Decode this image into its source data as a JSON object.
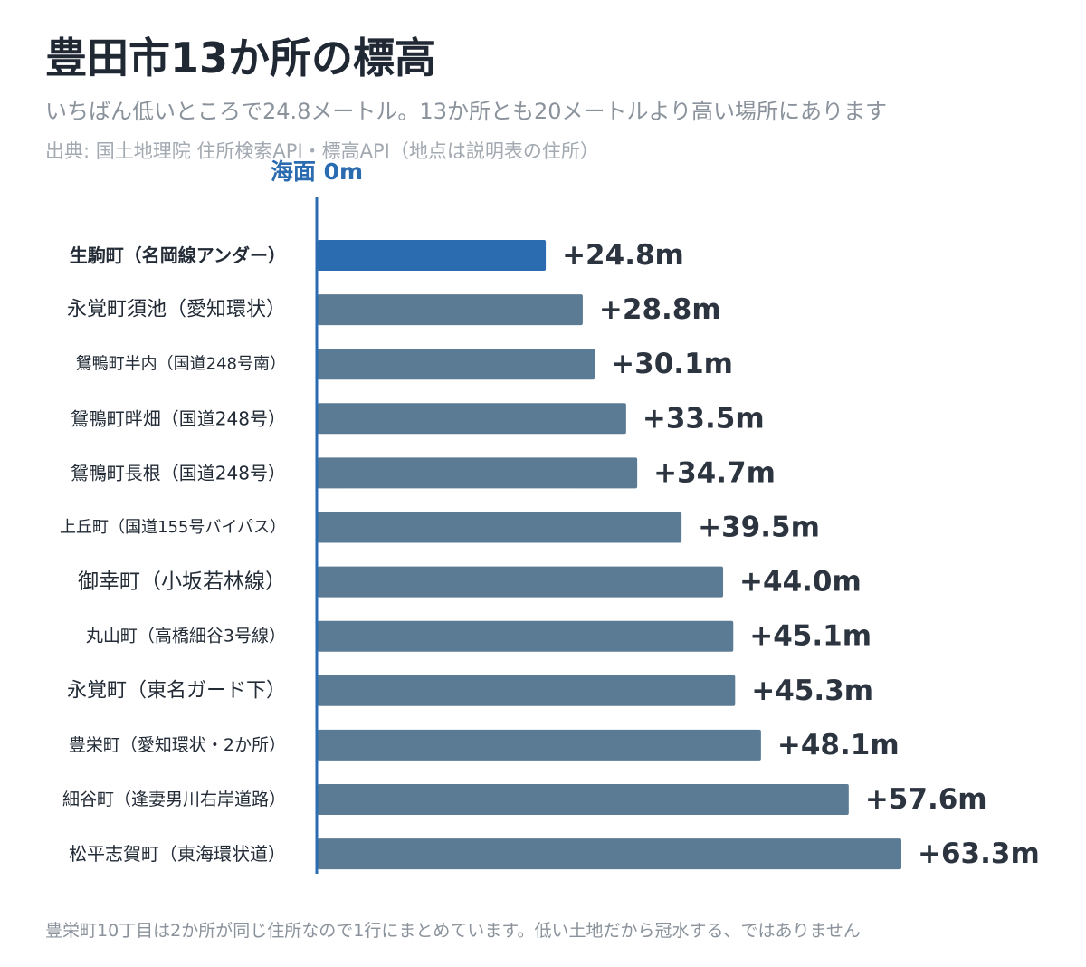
{
  "title": "豊田市13か所の標高",
  "subtitle": "いちばん低いところで24.8メートル。13か所とも20メートルより高い場所にあります",
  "source": "出典: 国土地理院 住所検索API・標高API（地点は説明表の住所）",
  "footnote": "豊栄町10丁目は2か所が同じ住所なので1行にまとめています。低い土地だから冠水する、ではありません",
  "colors": {
    "highlight": "#2b6cb0",
    "bar": "#5b7b94",
    "axis": "#2b6cb0",
    "zero_label": "#2b6cb0"
  },
  "chart_data": {
    "type": "bar",
    "orientation": "horizontal",
    "zero_label": "海面 0m",
    "categories": [
      "生駒町（名岡線アンダー）",
      "永覚町須池（愛知環状）",
      "鴛鴨町半内（国道248号南）",
      "鴛鴨町畔畑（国道248号）",
      "鴛鴨町長根（国道248号）",
      "上丘町（国道155号バイパス）",
      "御幸町（小坂若林線）",
      "丸山町（高橋細谷3号線）",
      "永覚町（東名ガード下）",
      "豊栄町（愛知環状・2か所）",
      "細谷町（逢妻男川右岸道路）",
      "松平志賀町（東海環状道）"
    ],
    "values": [
      24.8,
      28.8,
      30.1,
      33.5,
      34.7,
      39.5,
      44.0,
      45.1,
      45.3,
      48.1,
      57.6,
      63.3
    ],
    "value_labels": [
      "+24.8m",
      "+28.8m",
      "+30.1m",
      "+33.5m",
      "+34.7m",
      "+39.5m",
      "+44.0m",
      "+45.1m",
      "+45.3m",
      "+48.1m",
      "+57.6m",
      "+63.3m"
    ],
    "highlight_index": 0,
    "xlim": [
      0,
      70
    ]
  }
}
